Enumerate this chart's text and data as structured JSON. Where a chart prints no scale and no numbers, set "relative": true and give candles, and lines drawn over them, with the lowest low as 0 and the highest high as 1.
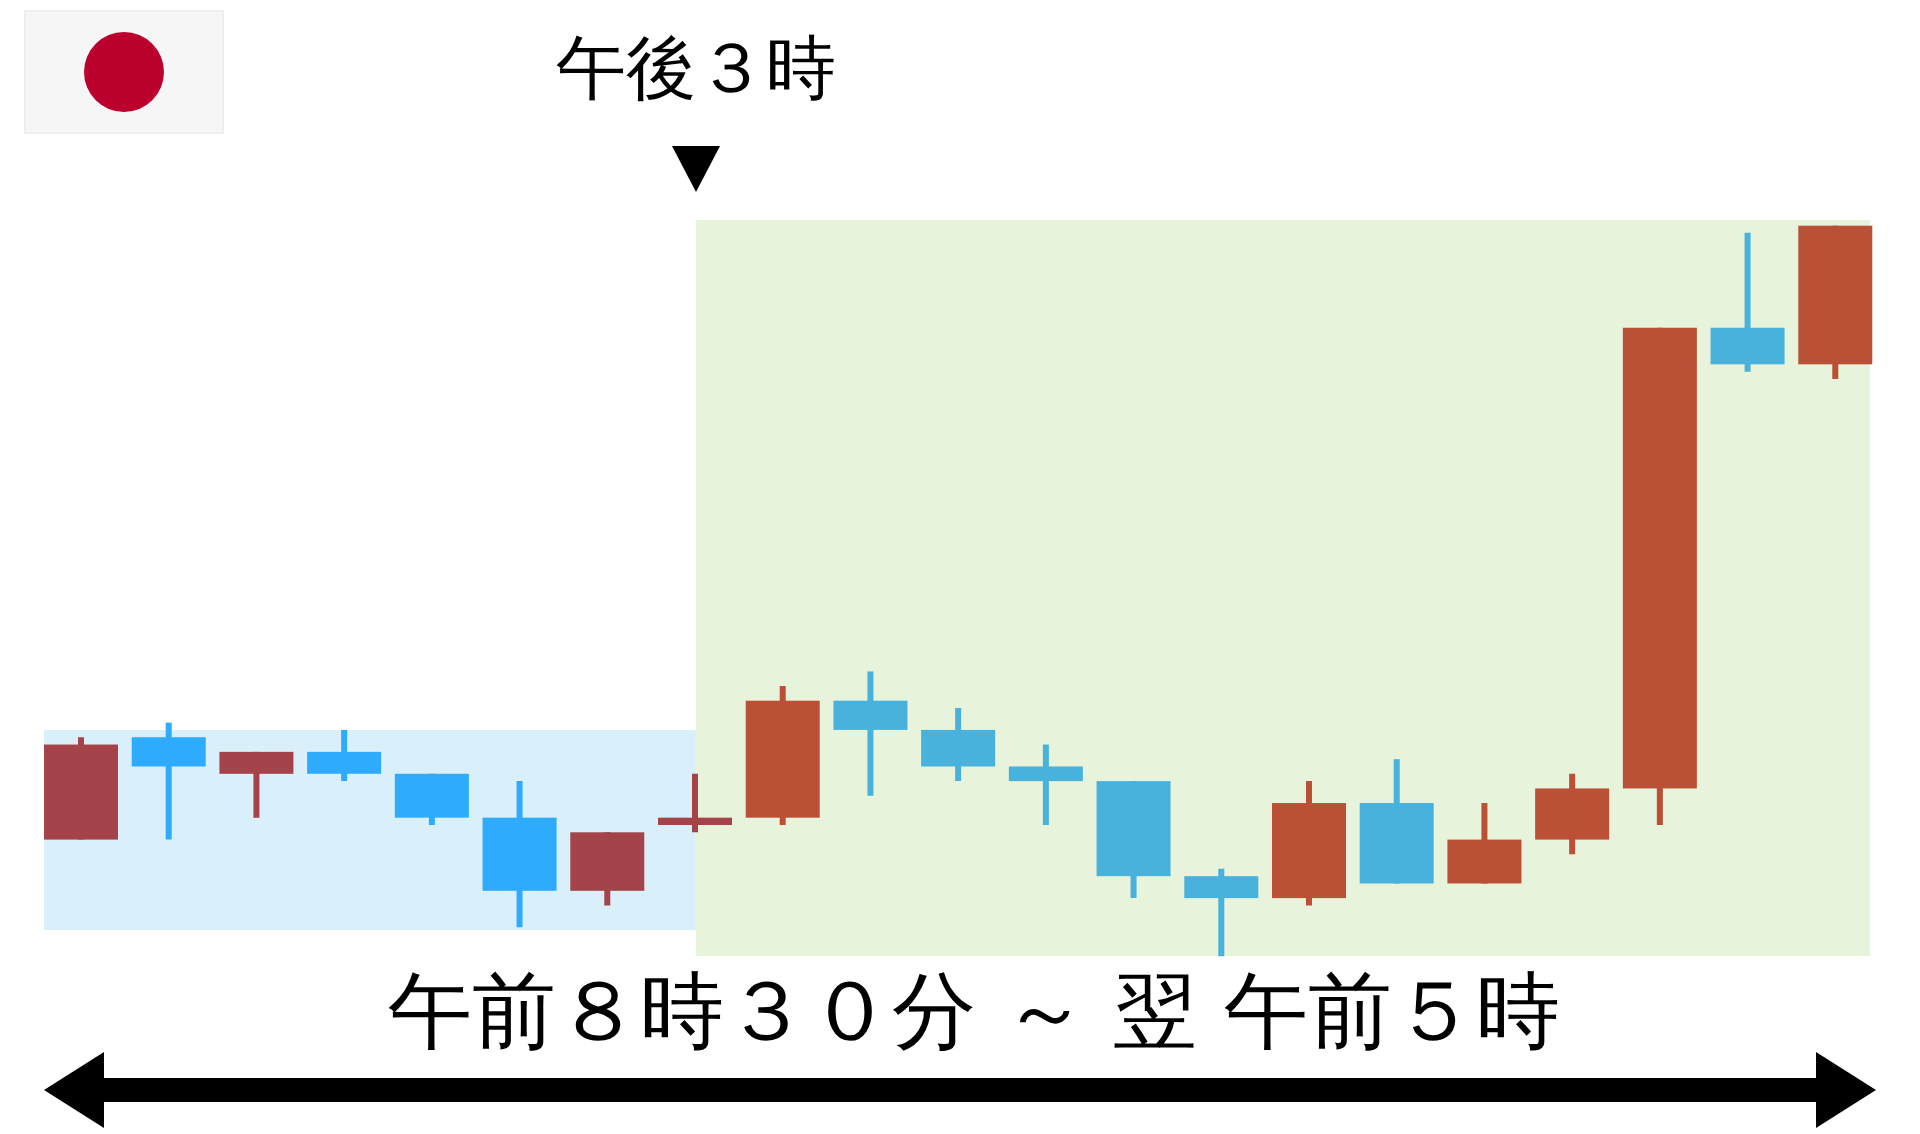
{
  "chart_data": {
    "type": "candlestick",
    "relative": true,
    "categories": [
      null,
      null,
      null,
      null,
      null,
      null,
      null,
      null,
      null,
      null,
      null,
      null,
      null,
      null,
      null,
      null,
      null,
      null,
      null,
      null,
      null
    ],
    "ohlc": [
      [
        0.16,
        0.3,
        0.16,
        0.29
      ],
      [
        0.3,
        0.32,
        0.16,
        0.26
      ],
      [
        0.25,
        0.28,
        0.19,
        0.28
      ],
      [
        0.28,
        0.31,
        0.24,
        0.25
      ],
      [
        0.25,
        0.25,
        0.18,
        0.19
      ],
      [
        0.19,
        0.24,
        0.04,
        0.09
      ],
      [
        0.09,
        0.17,
        0.07,
        0.17
      ],
      [
        0.18,
        0.25,
        0.17,
        0.19
      ],
      [
        0.19,
        0.37,
        0.18,
        0.35
      ],
      [
        0.35,
        0.39,
        0.22,
        0.31
      ],
      [
        0.31,
        0.34,
        0.24,
        0.26
      ],
      [
        0.26,
        0.29,
        0.18,
        0.24
      ],
      [
        0.24,
        0.24,
        0.08,
        0.11
      ],
      [
        0.11,
        0.12,
        0.0,
        0.08
      ],
      [
        0.08,
        0.24,
        0.07,
        0.21
      ],
      [
        0.21,
        0.27,
        0.1,
        0.1
      ],
      [
        0.1,
        0.21,
        0.1,
        0.16
      ],
      [
        0.16,
        0.25,
        0.14,
        0.23
      ],
      [
        0.23,
        0.86,
        0.18,
        0.86
      ],
      [
        0.86,
        0.99,
        0.8,
        0.81
      ],
      [
        0.81,
        1.0,
        0.79,
        1.0
      ]
    ],
    "colors": [
      "#a4434a",
      "#2eabfd",
      "#a4434a",
      "#2eabfd",
      "#2eabfd",
      "#2eabfd",
      "#a4434a",
      "#a4434a",
      "#ba5136",
      "#48b1dc",
      "#48b1dc",
      "#48b1dc",
      "#48b1dc",
      "#48b1dc",
      "#ba5136",
      "#48b1dc",
      "#ba5136",
      "#ba5136",
      "#ba5136",
      "#48b1dc",
      "#ba5136"
    ],
    "annotations": [
      "午後３時",
      "午前８時３０分 ～ 翌 午前５時"
    ]
  }
}
